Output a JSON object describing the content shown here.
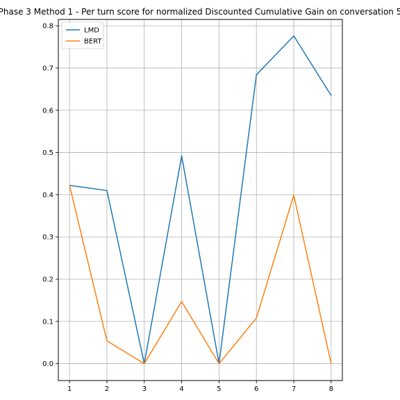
{
  "chart_data": {
    "type": "line",
    "title": "Phase 3 Method 1 - Per turn score for normalized Discounted Cumulative Gain on conversation 5",
    "x": [
      1,
      2,
      3,
      4,
      5,
      6,
      7,
      8
    ],
    "xticks": [
      "1",
      "2",
      "3",
      "4",
      "5",
      "6",
      "7",
      "8"
    ],
    "xlim": [
      0.7,
      8.3
    ],
    "ylim": [
      -0.04,
      0.815
    ],
    "yticks": [
      "0.0",
      "0.1",
      "0.2",
      "0.3",
      "0.4",
      "0.5",
      "0.6",
      "0.7",
      "0.8"
    ],
    "grid": true,
    "legend": "top-left",
    "series": [
      {
        "name": "LMD",
        "color": "#1f77b4",
        "values": [
          0.422,
          0.41,
          0.0,
          0.492,
          0.0,
          0.684,
          0.776,
          0.635
        ]
      },
      {
        "name": "BERT",
        "color": "#ff7f0e",
        "values": [
          0.422,
          0.054,
          0.0,
          0.147,
          0.0,
          0.108,
          0.399,
          0.0
        ]
      }
    ]
  }
}
